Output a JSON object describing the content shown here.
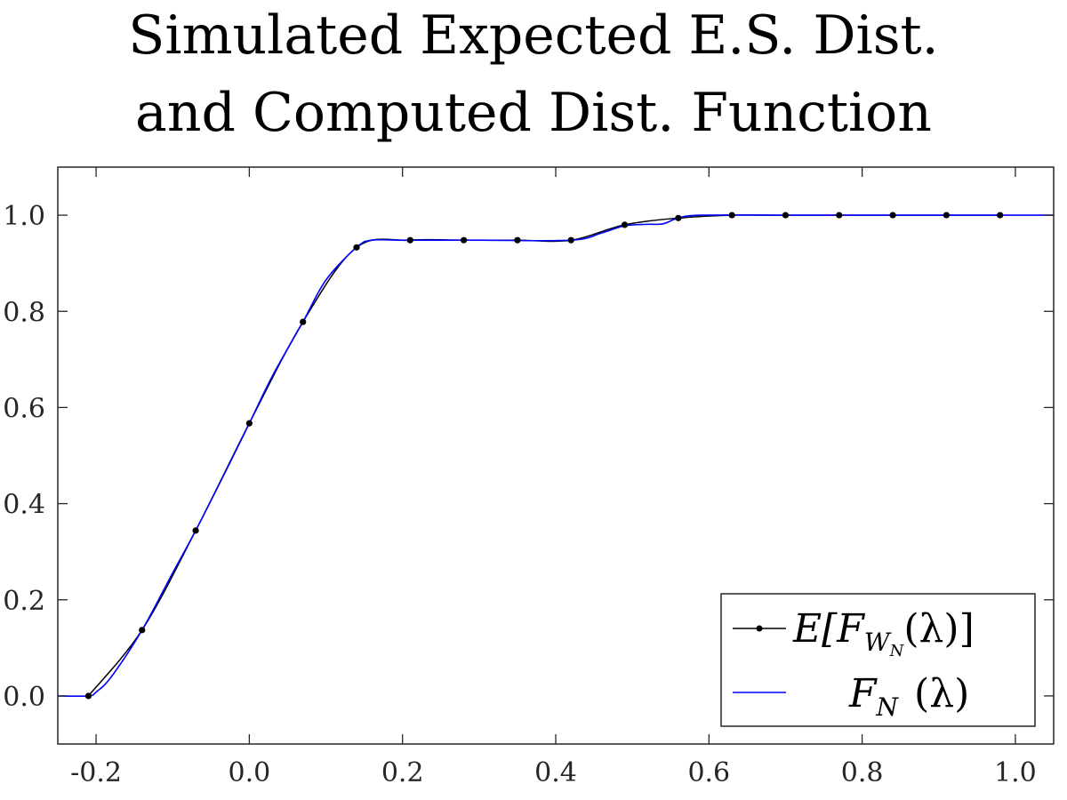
{
  "chart_data": {
    "type": "line",
    "title_lines": [
      "Simulated Expected E.S. Dist.",
      "and Computed Dist. Function"
    ],
    "xlabel": "",
    "ylabel": "",
    "xlim": [
      -0.25,
      1.05
    ],
    "ylim": [
      -0.1,
      1.1
    ],
    "xticks": [
      -0.2,
      0.0,
      0.2,
      0.4,
      0.6,
      0.8,
      1.0
    ],
    "xtick_labels": [
      "-0.2",
      "0.0",
      "0.2",
      "0.4",
      "0.6",
      "0.8",
      "1.0"
    ],
    "yticks": [
      0.0,
      0.2,
      0.4,
      0.6,
      0.8,
      1.0
    ],
    "ytick_labels": [
      "0.0",
      "0.2",
      "0.4",
      "0.6",
      "0.8",
      "1.0"
    ],
    "grid": false,
    "legend_position": "bottom-right",
    "series": [
      {
        "name": "E[F_{W_N}(λ)]",
        "style": "line-with-markers",
        "color": "#000000",
        "x": [
          -0.21,
          -0.14,
          -0.07,
          0.0,
          0.07,
          0.14,
          0.21,
          0.28,
          0.35,
          0.42,
          0.49,
          0.56,
          0.63,
          0.7,
          0.77,
          0.84,
          0.91,
          0.98
        ],
        "y": [
          0.0,
          0.137,
          0.344,
          0.567,
          0.778,
          0.933,
          0.948,
          0.948,
          0.948,
          0.948,
          0.98,
          0.994,
          1.0,
          1.0,
          1.0,
          1.0,
          1.0,
          1.0
        ]
      },
      {
        "name": "F_N (λ)",
        "style": "line",
        "color": "#0000ff",
        "x": [
          -0.25,
          -0.21,
          -0.2,
          -0.18,
          -0.14,
          -0.1,
          -0.07,
          -0.03,
          0.0,
          0.03,
          0.07,
          0.1,
          0.14,
          0.16,
          0.2,
          0.3,
          0.42,
          0.46,
          0.49,
          0.52,
          0.54,
          0.56,
          0.59,
          0.7,
          0.9,
          1.05
        ],
        "y": [
          0.0,
          0.0,
          0.008,
          0.04,
          0.137,
          0.256,
          0.344,
          0.47,
          0.567,
          0.665,
          0.778,
          0.865,
          0.933,
          0.948,
          0.948,
          0.948,
          0.948,
          0.963,
          0.978,
          0.981,
          0.982,
          0.994,
          1.0,
          1.0,
          1.0,
          1.0
        ]
      }
    ]
  },
  "legend": {
    "entry1": {
      "main": "E[F",
      "sub": "W",
      "subsub": "N",
      "tail": "(λ)]"
    },
    "entry2": {
      "main": "F",
      "sub": "N",
      "tail": "(λ)"
    }
  }
}
